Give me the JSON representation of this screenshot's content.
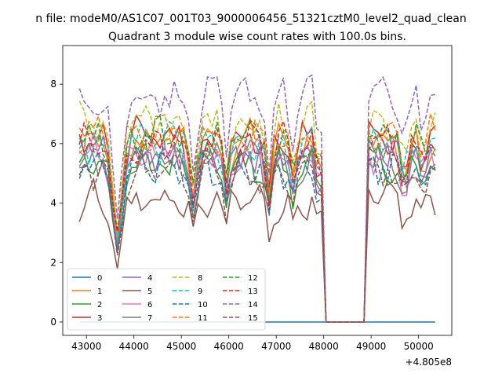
{
  "chart_data": {
    "type": "line",
    "suptitle": "n file: modeM0/AS1C07_001T03_9000006456_51321cztM0_level2_quad_clean",
    "title": "Quadrant 3 module wise count rates with 100.0s bins.",
    "xlabel": "",
    "ylabel": "",
    "x_offset_label": "+4.805e8",
    "xlim": [
      42500,
      50700
    ],
    "ylim": [
      -0.45,
      9.3
    ],
    "x_ticks": [
      43000,
      44000,
      45000,
      46000,
      47000,
      48000,
      49000,
      50000
    ],
    "x_tick_labels": [
      "43000",
      "44000",
      "45000",
      "46000",
      "47000",
      "48000",
      "49000",
      "50000"
    ],
    "y_ticks": [
      0,
      2,
      4,
      6,
      8
    ],
    "y_tick_labels": [
      "0",
      "2",
      "4",
      "6",
      "8"
    ],
    "x_start": 42850,
    "x_step": 100,
    "n_points": 76,
    "gap_start": 47950,
    "gap_end": 48950,
    "legend": {
      "placement": "lower-left",
      "ncol": 4
    },
    "series": [
      {
        "name": "0",
        "color": "#1f77b4",
        "style": "solid",
        "level": 0.0
      },
      {
        "name": "1",
        "color": "#ff7f0e",
        "style": "solid",
        "level": 6.1
      },
      {
        "name": "2",
        "color": "#2ca02c",
        "style": "solid",
        "level": 5.3
      },
      {
        "name": "3",
        "color": "#d62728",
        "style": "solid",
        "level": 6.2
      },
      {
        "name": "4",
        "color": "#9467bd",
        "style": "solid",
        "level": 5.6
      },
      {
        "name": "5",
        "color": "#8c564b",
        "style": "solid",
        "level": 4.1
      },
      {
        "name": "6",
        "color": "#e377c2",
        "style": "solid",
        "level": 5.7
      },
      {
        "name": "7",
        "color": "#7f7f7f",
        "style": "solid",
        "level": 5.4
      },
      {
        "name": "8",
        "color": "#bcbd22",
        "style": "dashed",
        "level": 6.7
      },
      {
        "name": "9",
        "color": "#17becf",
        "style": "dashed",
        "level": 6.0
      },
      {
        "name": "10",
        "color": "#1f77b4",
        "style": "dashed",
        "level": 5.2
      },
      {
        "name": "11",
        "color": "#ff7f0e",
        "style": "dashed",
        "level": 6.4
      },
      {
        "name": "12",
        "color": "#2ca02c",
        "style": "dashed",
        "level": 6.3
      },
      {
        "name": "13",
        "color": "#d62728",
        "style": "dashed",
        "level": 6.0
      },
      {
        "name": "14",
        "color": "#9467bd",
        "style": "dashed",
        "level": 7.6
      },
      {
        "name": "15",
        "color": "#8c564b",
        "style": "dashed",
        "level": 5.1
      }
    ]
  }
}
